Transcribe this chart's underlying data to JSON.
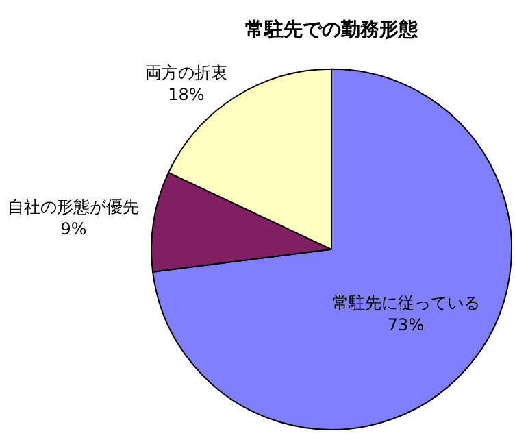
{
  "chart_data": {
    "type": "pie",
    "title": "常駐先での勤務形態",
    "categories": [
      "常駐先に従っている",
      "自社の形態が優先",
      "両方の折衷"
    ],
    "values": [
      73,
      9,
      18
    ],
    "value_labels": [
      "73%",
      "9%",
      "18%"
    ],
    "colors": [
      "#8080ff",
      "#802060",
      "#ffffc0"
    ],
    "legend": false
  }
}
